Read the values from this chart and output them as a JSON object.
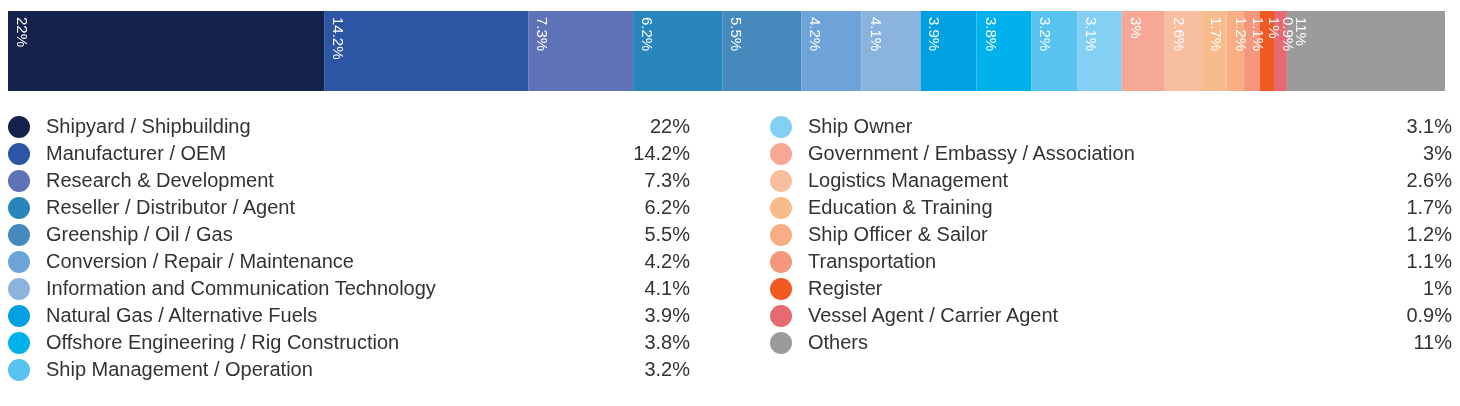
{
  "chart_data": {
    "type": "bar",
    "stacked": true,
    "orientation": "horizontal",
    "categories": [
      null
    ],
    "tick_labels": false,
    "legend": "bottom",
    "series": [
      {
        "name": "Shipyard / Shipbuilding",
        "color": "#15224b",
        "values": [
          22
        ],
        "value_labels": [
          "22%"
        ]
      },
      {
        "name": "Manufacturer / OEM",
        "color": "#2c55a4",
        "values": [
          14.2
        ],
        "value_labels": [
          "14.2%"
        ]
      },
      {
        "name": "Research & Development",
        "color": "#5e72b7",
        "values": [
          7.3
        ],
        "value_labels": [
          "7.3%"
        ]
      },
      {
        "name": "Reseller / Distributor / Agent",
        "color": "#2986bd",
        "values": [
          6.2
        ],
        "value_labels": [
          "6.2%"
        ]
      },
      {
        "name": "Greenship / Oil / Gas",
        "color": "#4689bd",
        "values": [
          5.5
        ],
        "value_labels": [
          "5.5%"
        ]
      },
      {
        "name": "Conversion / Repair / Maintenance",
        "color": "#6ea3d9",
        "values": [
          4.2
        ],
        "value_labels": [
          "4.2%"
        ]
      },
      {
        "name": "Information and Communication Technology",
        "color": "#8ab3de",
        "values": [
          4.1
        ],
        "value_labels": [
          "4.1%"
        ]
      },
      {
        "name": "Natural Gas / Alternative Fuels",
        "color": "#00a0e3",
        "values": [
          3.9
        ],
        "value_labels": [
          "3.9%"
        ]
      },
      {
        "name": "Offshore Engineering / Rig Construction",
        "color": "#00b1ec",
        "values": [
          3.8
        ],
        "value_labels": [
          "3.8%"
        ]
      },
      {
        "name": "Ship Management / Operation",
        "color": "#58c3f0",
        "values": [
          3.2
        ],
        "value_labels": [
          "3.2%"
        ]
      },
      {
        "name": "Ship Owner",
        "color": "#84cff4",
        "values": [
          3.1
        ],
        "value_labels": [
          "3.1%"
        ]
      },
      {
        "name": "Government / Embassy / Association",
        "color": "#f6a894",
        "values": [
          3
        ],
        "value_labels": [
          "3%"
        ]
      },
      {
        "name": "Logistics Management",
        "color": "#f8bea0",
        "values": [
          2.6
        ],
        "value_labels": [
          "2.6%"
        ]
      },
      {
        "name": "Education & Training",
        "color": "#f8bb8c",
        "values": [
          1.7
        ],
        "value_labels": [
          "1.7%"
        ]
      },
      {
        "name": "Ship Officer & Sailor",
        "color": "#f8ad84",
        "values": [
          1.2
        ],
        "value_labels": [
          "1.2%"
        ]
      },
      {
        "name": "Transportation",
        "color": "#f5977c",
        "values": [
          1.1
        ],
        "value_labels": [
          "1.1%"
        ]
      },
      {
        "name": "Register",
        "color": "#f05a22",
        "values": [
          1
        ],
        "value_labels": [
          "1%"
        ]
      },
      {
        "name": "Vessel Agent / Carrier Agent",
        "color": "#e76a72",
        "values": [
          0.9
        ],
        "value_labels": [
          "0.9%"
        ]
      },
      {
        "name": "Others",
        "color": "#9b9b9b",
        "values": [
          11
        ],
        "value_labels": [
          "11%"
        ]
      }
    ]
  }
}
